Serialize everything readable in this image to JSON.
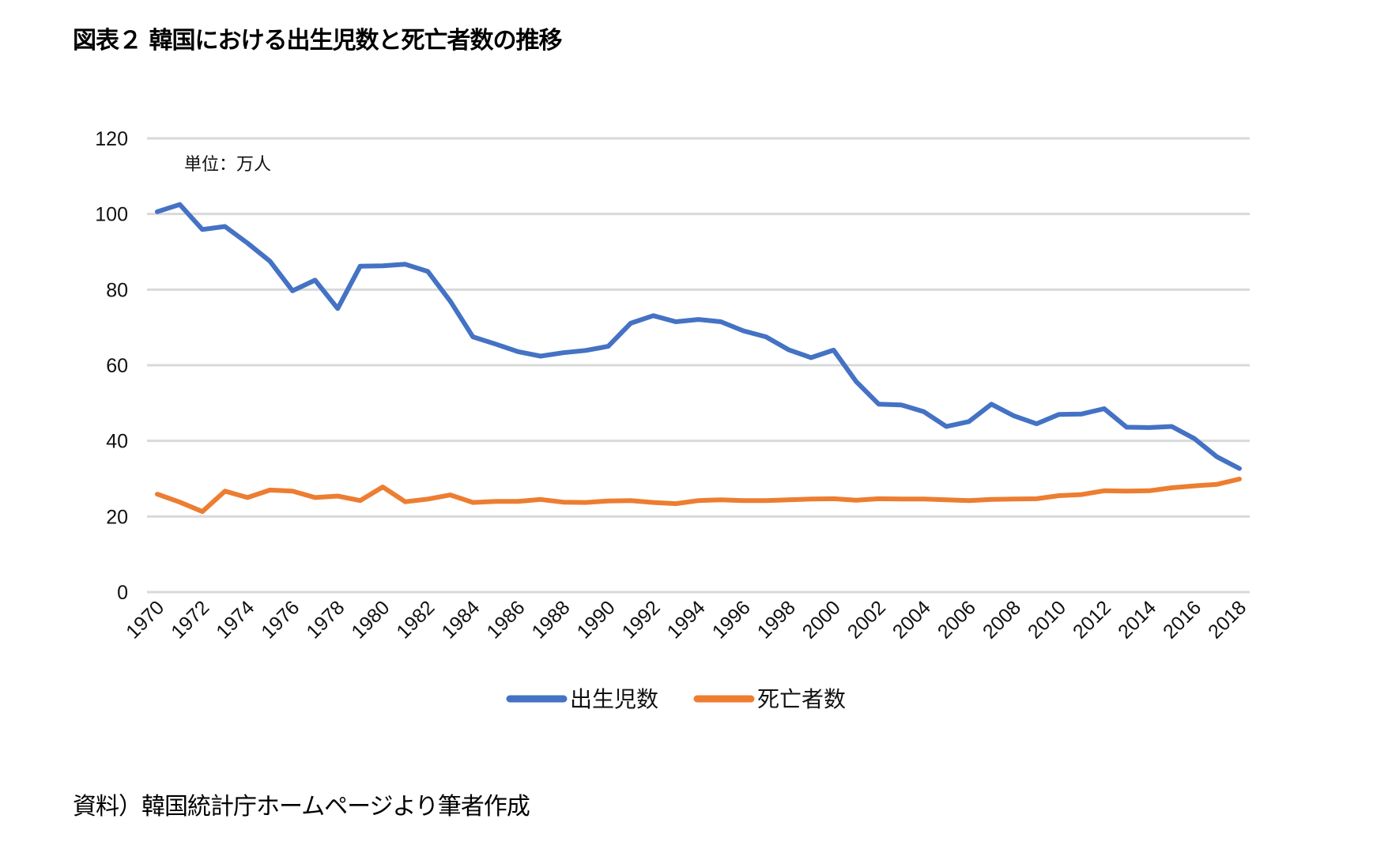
{
  "title": "図表２ 韓国における出生児数と死亡者数の推移",
  "source": "資料）韓国統計庁ホームページより筆者作成",
  "chart_data": {
    "type": "line",
    "unit_label": "単位：万人",
    "x": [
      1970,
      1971,
      1972,
      1973,
      1974,
      1975,
      1976,
      1977,
      1978,
      1979,
      1980,
      1981,
      1982,
      1983,
      1984,
      1985,
      1986,
      1987,
      1988,
      1989,
      1990,
      1991,
      1992,
      1993,
      1994,
      1995,
      1996,
      1997,
      1998,
      1999,
      2000,
      2001,
      2002,
      2003,
      2004,
      2005,
      2006,
      2007,
      2008,
      2009,
      2010,
      2011,
      2012,
      2013,
      2014,
      2015,
      2016,
      2017,
      2018
    ],
    "x_tick_labels": [
      "1970",
      "1972",
      "1974",
      "1976",
      "1978",
      "1980",
      "1982",
      "1984",
      "1986",
      "1988",
      "1990",
      "1992",
      "1994",
      "1996",
      "1998",
      "2000",
      "2002",
      "2004",
      "2006",
      "2008",
      "2010",
      "2012",
      "2014",
      "2016",
      "2018"
    ],
    "y_ticks": [
      0,
      20,
      40,
      60,
      80,
      100,
      120
    ],
    "ylim": [
      0,
      120
    ],
    "grid": true,
    "legend": "bottom",
    "series": [
      {
        "name": "出生児数",
        "color": "#4472C4",
        "values": [
          100.6,
          102.5,
          95.9,
          96.7,
          92.3,
          87.5,
          79.7,
          82.5,
          75.0,
          86.2,
          86.3,
          86.7,
          84.8,
          76.9,
          67.5,
          65.6,
          63.6,
          62.4,
          63.3,
          63.9,
          65.0,
          71.1,
          73.1,
          71.5,
          72.1,
          71.5,
          69.1,
          67.5,
          64.1,
          62.0,
          64.0,
          55.7,
          49.7,
          49.5,
          47.7,
          43.8,
          45.1,
          49.7,
          46.6,
          44.5,
          47.0,
          47.1,
          48.5,
          43.6,
          43.5,
          43.8,
          40.6,
          35.8,
          32.7
        ]
      },
      {
        "name": "死亡者数",
        "color": "#ED7D31",
        "values": [
          25.9,
          23.8,
          21.3,
          26.7,
          25.0,
          27.0,
          26.7,
          25.0,
          25.4,
          24.2,
          27.8,
          23.9,
          24.6,
          25.7,
          23.7,
          24.0,
          24.0,
          24.5,
          23.8,
          23.7,
          24.1,
          24.2,
          23.7,
          23.4,
          24.2,
          24.4,
          24.2,
          24.2,
          24.4,
          24.6,
          24.7,
          24.3,
          24.7,
          24.6,
          24.6,
          24.4,
          24.2,
          24.5,
          24.6,
          24.7,
          25.5,
          25.8,
          26.8,
          26.7,
          26.8,
          27.6,
          28.1,
          28.5,
          29.9
        ]
      }
    ]
  }
}
